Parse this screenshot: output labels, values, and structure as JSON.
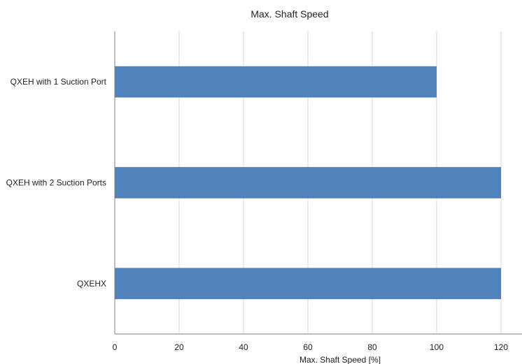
{
  "chart_data": {
    "type": "bar",
    "orientation": "horizontal",
    "title": "Max. Shaft Speed",
    "xlabel": "Max. Shaft Speed [%]",
    "ylabel": "",
    "categories": [
      "QXEH with 1 Suction Port",
      "QXEH with 2 Suction Ports",
      "QXEHX"
    ],
    "values": [
      100,
      120,
      120
    ],
    "xlim": [
      0,
      120
    ],
    "xticks": [
      "0",
      "20",
      "40",
      "60",
      "80",
      "100",
      "120"
    ],
    "grid": true,
    "legend": "none",
    "bar_color": "#4f81bd",
    "grid_color": "#d9d9d9",
    "axis_color": "#7f7f7f"
  }
}
